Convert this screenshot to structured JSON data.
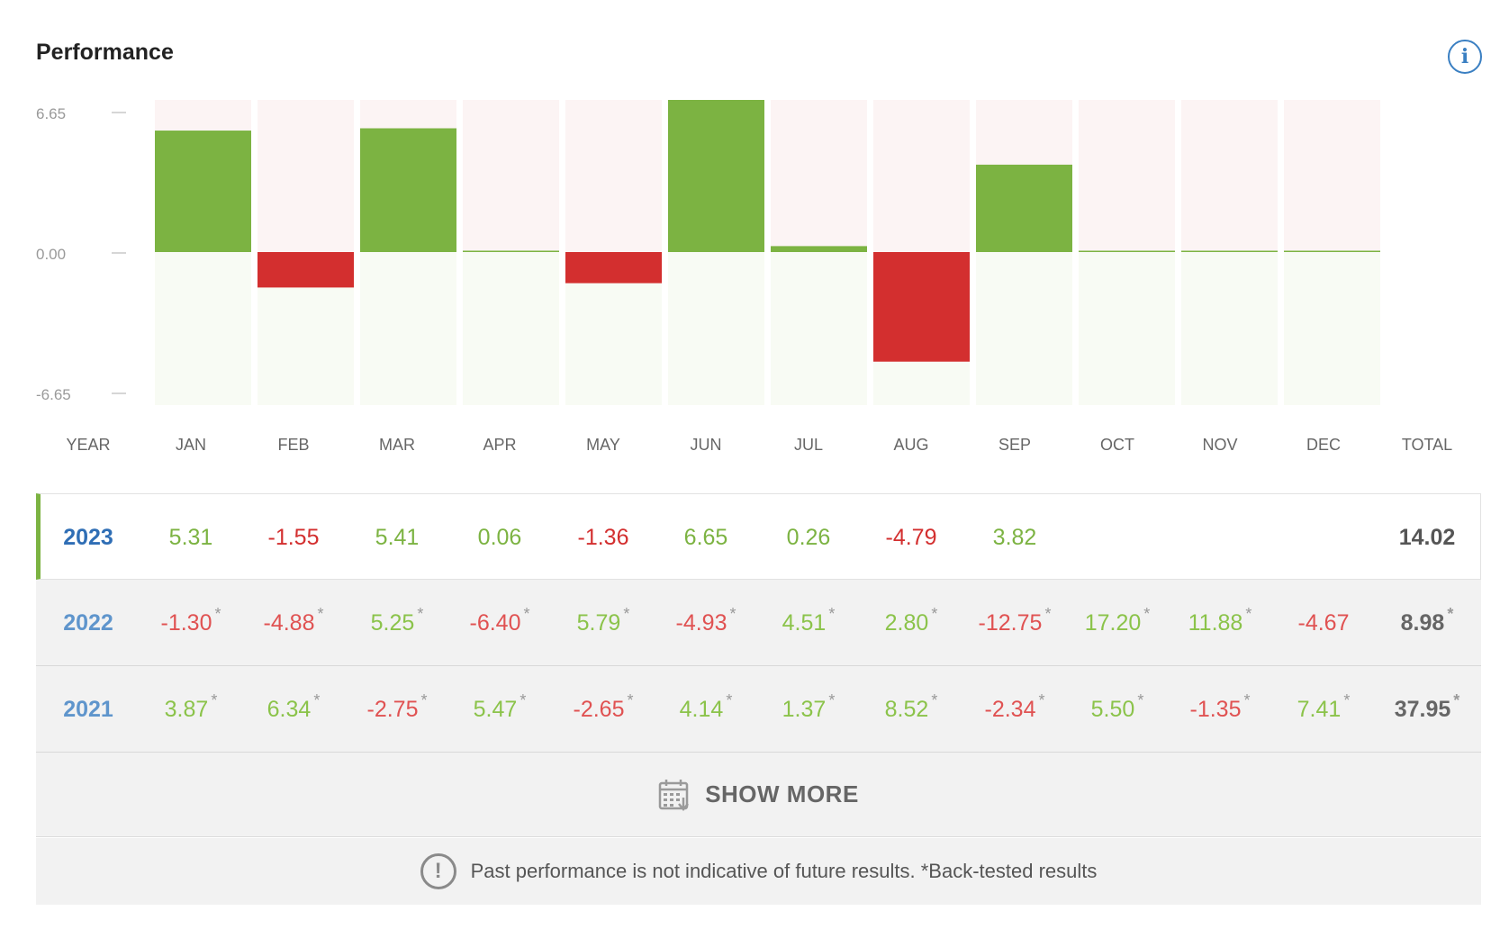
{
  "header": {
    "title": "Performance",
    "info_icon_glyph": "i"
  },
  "chart_data": {
    "type": "bar",
    "title": "Performance",
    "categories": [
      "JAN",
      "FEB",
      "MAR",
      "APR",
      "MAY",
      "JUN",
      "JUL",
      "AUG",
      "SEP",
      "OCT",
      "NOV",
      "DEC"
    ],
    "series": [
      {
        "name": "2023",
        "values": [
          5.31,
          -1.55,
          5.41,
          0.06,
          -1.36,
          6.65,
          0.26,
          -4.79,
          3.82,
          0,
          0,
          0
        ]
      }
    ],
    "yticks": [
      "6.65",
      "0.00",
      "-6.65"
    ],
    "ylim": [
      -6.65,
      6.65
    ],
    "colors": {
      "positive": "#7cb342",
      "negative": "#d32f2f",
      "pos_bg": "#fcf4f4",
      "neg_bg": "#f8fbf4"
    }
  },
  "columns": {
    "year": "YEAR",
    "months": [
      "JAN",
      "FEB",
      "MAR",
      "APR",
      "MAY",
      "JUN",
      "JUL",
      "AUG",
      "SEP",
      "OCT",
      "NOV",
      "DEC"
    ],
    "total": "TOTAL"
  },
  "rows": [
    {
      "year": "2023",
      "current": true,
      "total": "14.02",
      "total_star": false,
      "cells": [
        {
          "v": "5.31",
          "s": false
        },
        {
          "v": "-1.55",
          "s": false
        },
        {
          "v": "5.41",
          "s": false
        },
        {
          "v": "0.06",
          "s": false
        },
        {
          "v": "-1.36",
          "s": false
        },
        {
          "v": "6.65",
          "s": false
        },
        {
          "v": "0.26",
          "s": false
        },
        {
          "v": "-4.79",
          "s": false
        },
        {
          "v": "3.82",
          "s": false
        },
        {
          "v": "",
          "s": false
        },
        {
          "v": "",
          "s": false
        },
        {
          "v": "",
          "s": false
        }
      ]
    },
    {
      "year": "2022",
      "current": false,
      "total": "8.98",
      "total_star": true,
      "cells": [
        {
          "v": "-1.30",
          "s": true
        },
        {
          "v": "-4.88",
          "s": true
        },
        {
          "v": "5.25",
          "s": true
        },
        {
          "v": "-6.40",
          "s": true
        },
        {
          "v": "5.79",
          "s": true
        },
        {
          "v": "-4.93",
          "s": true
        },
        {
          "v": "4.51",
          "s": true
        },
        {
          "v": "2.80",
          "s": true
        },
        {
          "v": "-12.75",
          "s": true
        },
        {
          "v": "17.20",
          "s": true
        },
        {
          "v": "11.88",
          "s": true
        },
        {
          "v": "-4.67",
          "s": false
        }
      ]
    },
    {
      "year": "2021",
      "current": false,
      "total": "37.95",
      "total_star": true,
      "cells": [
        {
          "v": "3.87",
          "s": true
        },
        {
          "v": "6.34",
          "s": true
        },
        {
          "v": "-2.75",
          "s": true
        },
        {
          "v": "5.47",
          "s": true
        },
        {
          "v": "-2.65",
          "s": true
        },
        {
          "v": "4.14",
          "s": true
        },
        {
          "v": "1.37",
          "s": true
        },
        {
          "v": "8.52",
          "s": true
        },
        {
          "v": "-2.34",
          "s": true
        },
        {
          "v": "5.50",
          "s": true
        },
        {
          "v": "-1.35",
          "s": true
        },
        {
          "v": "7.41",
          "s": true
        }
      ]
    }
  ],
  "star_glyph": "*",
  "show_more": {
    "label": "SHOW MORE",
    "icon": "calendar-icon"
  },
  "disclaimer": {
    "icon_glyph": "!",
    "text": "Past performance is not indicative of future results. *Back-tested results"
  }
}
